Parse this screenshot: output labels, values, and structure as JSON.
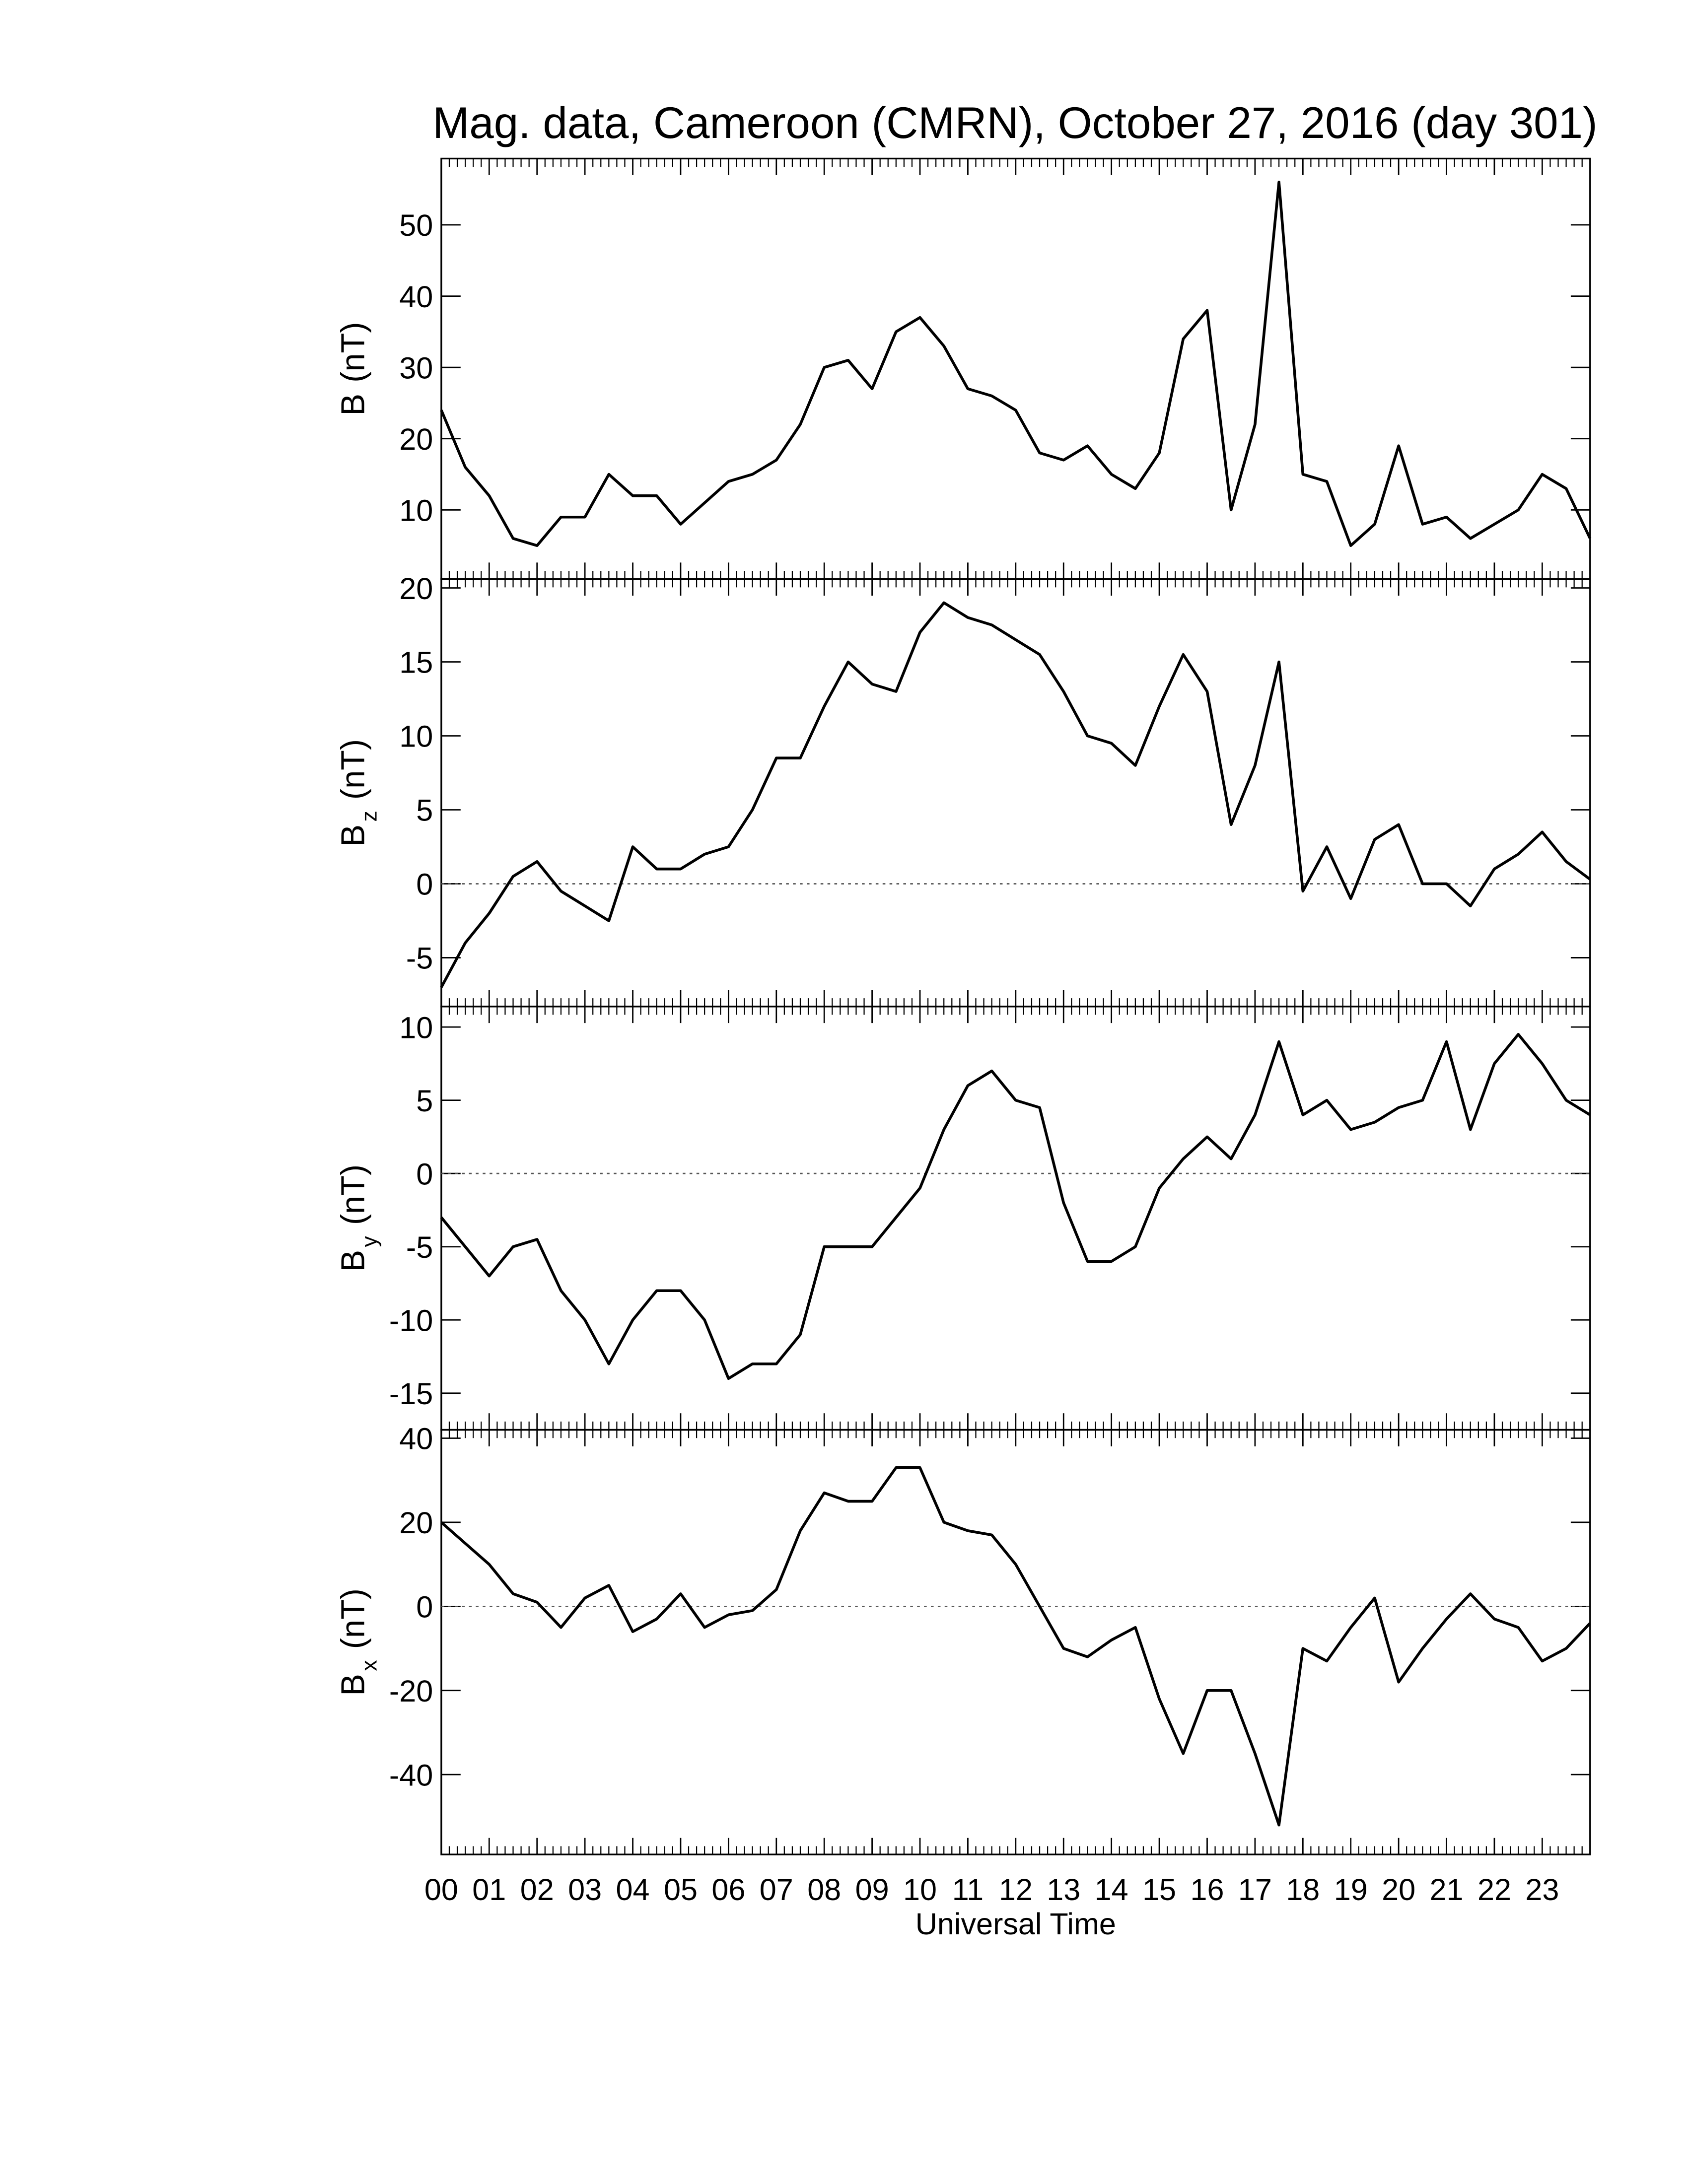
{
  "chart_data": [
    {
      "type": "line",
      "title": "Mag. data, Cameroon (CMRN), October 27, 2016 (day 301)",
      "ylabel": {
        "main": "B",
        "unit": "(nT)"
      },
      "color": "#000000",
      "zero_line": false,
      "xlim": [
        0,
        24
      ],
      "ylim": [
        0.3,
        59.3
      ],
      "yticks": [
        10,
        20,
        30,
        40,
        50
      ],
      "x": [
        0,
        0.5,
        1,
        1.5,
        2,
        2.5,
        3,
        3.5,
        4,
        4.5,
        5,
        5.5,
        6,
        6.5,
        7,
        7.5,
        8,
        8.5,
        9,
        9.5,
        10,
        10.5,
        11,
        11.5,
        12,
        12.5,
        13,
        13.5,
        14,
        14.5,
        15,
        15.5,
        16,
        16.5,
        17,
        17.5,
        18,
        18.5,
        19,
        19.5,
        20,
        20.5,
        21,
        21.5,
        22,
        22.5,
        23,
        23.5,
        24
      ],
      "values": [
        24,
        16,
        12,
        6,
        5,
        9,
        9,
        15,
        12,
        12,
        8,
        11,
        14,
        15,
        17,
        22,
        30,
        31,
        27,
        35,
        37,
        33,
        27,
        26,
        24,
        18,
        17,
        19,
        15,
        13,
        18,
        34,
        38,
        10,
        22,
        56,
        15,
        14,
        5,
        8,
        19,
        8,
        9,
        6,
        8,
        10,
        15,
        13,
        6
      ]
    },
    {
      "type": "line",
      "ylabel": {
        "main": "B",
        "sub": "z",
        "unit": "(nT)"
      },
      "color": "#000000",
      "zero_line": true,
      "xlim": [
        0,
        24
      ],
      "ylim": [
        -8.3,
        20.6
      ],
      "yticks": [
        -5,
        0,
        5,
        10,
        15,
        20
      ],
      "x": [
        0,
        0.5,
        1,
        1.5,
        2,
        2.5,
        3,
        3.5,
        4,
        4.5,
        5,
        5.5,
        6,
        6.5,
        7,
        7.5,
        8,
        8.5,
        9,
        9.5,
        10,
        10.5,
        11,
        11.5,
        12,
        12.5,
        13,
        13.5,
        14,
        14.5,
        15,
        15.5,
        16,
        16.5,
        17,
        17.5,
        18,
        18.5,
        19,
        19.5,
        20,
        20.5,
        21,
        21.5,
        22,
        22.5,
        23,
        23.5,
        24
      ],
      "values": [
        -7,
        -4,
        -2,
        0.5,
        1.5,
        -0.5,
        -1.5,
        -2.5,
        2.5,
        1,
        1,
        2,
        2.5,
        5,
        8.5,
        8.5,
        12,
        15,
        13.5,
        13,
        17,
        19,
        18,
        17.5,
        16.5,
        15.5,
        13,
        10,
        9.5,
        8,
        12,
        15.5,
        13,
        4,
        8,
        15,
        -0.5,
        2.5,
        -1,
        3,
        4,
        0,
        0,
        -1.5,
        1,
        2,
        3.5,
        1.5,
        0.3
      ]
    },
    {
      "type": "line",
      "ylabel": {
        "main": "B",
        "sub": "y",
        "unit": "(nT)"
      },
      "color": "#000000",
      "zero_line": true,
      "xlim": [
        0,
        24
      ],
      "ylim": [
        -17.5,
        11.4
      ],
      "yticks": [
        -15,
        -10,
        -5,
        0,
        5,
        10
      ],
      "x": [
        0,
        0.5,
        1,
        1.5,
        2,
        2.5,
        3,
        3.5,
        4,
        4.5,
        5,
        5.5,
        6,
        6.5,
        7,
        7.5,
        8,
        8.5,
        9,
        9.5,
        10,
        10.5,
        11,
        11.5,
        12,
        12.5,
        13,
        13.5,
        14,
        14.5,
        15,
        15.5,
        16,
        16.5,
        17,
        17.5,
        18,
        18.5,
        19,
        19.5,
        20,
        20.5,
        21,
        21.5,
        22,
        22.5,
        23,
        23.5,
        24
      ],
      "values": [
        -3,
        -5,
        -7,
        -5,
        -4.5,
        -8,
        -10,
        -13,
        -10,
        -8,
        -8,
        -10,
        -14,
        -13,
        -13,
        -11,
        -5,
        -5,
        -5,
        -3,
        -1,
        3,
        6,
        7,
        5,
        4.5,
        -2,
        -6,
        -6,
        -5,
        -1,
        1,
        2.5,
        1,
        4,
        9,
        4,
        5,
        3,
        3.5,
        4.5,
        5,
        9,
        3,
        7.5,
        9.5,
        7.5,
        5,
        4
      ]
    },
    {
      "type": "line",
      "ylabel": {
        "main": "B",
        "sub": "x",
        "unit": "(nT)"
      },
      "color": "#000000",
      "zero_line": true,
      "xlabel": "Universal Time",
      "xlim": [
        0,
        24
      ],
      "ylim": [
        -59,
        42
      ],
      "yticks": [
        -40,
        -20,
        0,
        20,
        40
      ],
      "xticks": [
        {
          "value": 0,
          "label": "00"
        },
        {
          "value": 1,
          "label": "01"
        },
        {
          "value": 2,
          "label": "02"
        },
        {
          "value": 3,
          "label": "03"
        },
        {
          "value": 4,
          "label": "04"
        },
        {
          "value": 5,
          "label": "05"
        },
        {
          "value": 6,
          "label": "06"
        },
        {
          "value": 7,
          "label": "07"
        },
        {
          "value": 8,
          "label": "08"
        },
        {
          "value": 9,
          "label": "09"
        },
        {
          "value": 10,
          "label": "10"
        },
        {
          "value": 11,
          "label": "11"
        },
        {
          "value": 12,
          "label": "12"
        },
        {
          "value": 13,
          "label": "13"
        },
        {
          "value": 14,
          "label": "14"
        },
        {
          "value": 15,
          "label": "15"
        },
        {
          "value": 16,
          "label": "16"
        },
        {
          "value": 17,
          "label": "17"
        },
        {
          "value": 18,
          "label": "18"
        },
        {
          "value": 19,
          "label": "19"
        },
        {
          "value": 20,
          "label": "20"
        },
        {
          "value": 21,
          "label": "21"
        },
        {
          "value": 22,
          "label": "22"
        },
        {
          "value": 23,
          "label": "23"
        }
      ],
      "x": [
        0,
        0.5,
        1,
        1.5,
        2,
        2.5,
        3,
        3.5,
        4,
        4.5,
        5,
        5.5,
        6,
        6.5,
        7,
        7.5,
        8,
        8.5,
        9,
        9.5,
        10,
        10.5,
        11,
        11.5,
        12,
        12.5,
        13,
        13.5,
        14,
        14.5,
        15,
        15.5,
        16,
        16.5,
        17,
        17.5,
        18,
        18.5,
        19,
        19.5,
        20,
        20.5,
        21,
        21.5,
        22,
        22.5,
        23,
        23.5,
        24
      ],
      "values": [
        20,
        15,
        10,
        3,
        1,
        -5,
        2,
        5,
        -6,
        -3,
        3,
        -5,
        -2,
        -1,
        4,
        18,
        27,
        25,
        25,
        33,
        33,
        20,
        18,
        17,
        10,
        0,
        -10,
        -12,
        -8,
        -5,
        -22,
        -35,
        -20,
        -20,
        -35,
        -52,
        -10,
        -13,
        -5,
        2,
        -18,
        -10,
        -3,
        3,
        -3,
        -5,
        -13,
        -10,
        -4
      ]
    }
  ]
}
